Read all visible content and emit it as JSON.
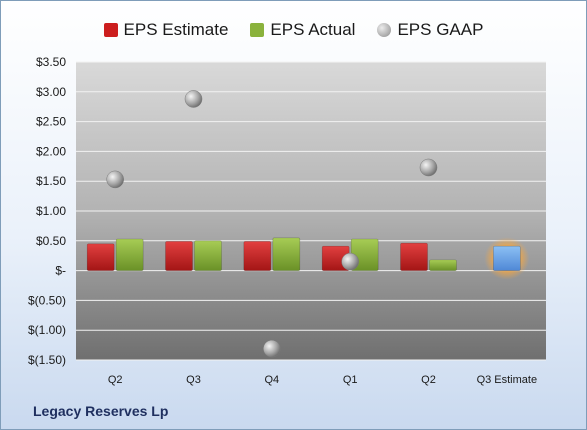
{
  "chart_data": {
    "type": "bar",
    "title": "",
    "categories": [
      "Q2",
      "Q3",
      "Q4",
      "Q1",
      "Q2",
      "Q3 Estimate"
    ],
    "series": [
      {
        "name": "EPS Estimate",
        "color": "#cc1e1e",
        "values": [
          0.45,
          0.49,
          0.49,
          0.41,
          0.46,
          null
        ]
      },
      {
        "name": "EPS Actual",
        "color": "#8ab23c",
        "values": [
          0.53,
          0.5,
          0.55,
          0.53,
          0.18,
          null
        ]
      },
      {
        "name": "EPS GAAP",
        "color": "#9a9a9a",
        "marker": "circle",
        "values": [
          1.53,
          2.88,
          -1.31,
          0.15,
          1.73,
          null
        ]
      }
    ],
    "estimate_bar": {
      "category": "Q3 Estimate",
      "value": 0.41,
      "color": "#6fa8e8",
      "glow": "#f5a742"
    },
    "yticks": [
      3.5,
      3.0,
      2.5,
      2.0,
      1.5,
      1.0,
      0.5,
      0,
      -0.5,
      -1.0,
      -1.5
    ],
    "ytick_labels": [
      "$3.50",
      "$3.00",
      "$2.50",
      "$2.00",
      "$1.50",
      "$1.00",
      "$0.50",
      "$-",
      "$(0.50)",
      "$(1.00)",
      "$(1.50)"
    ],
    "ylim": [
      -1.5,
      3.5
    ],
    "grid": true,
    "legend_position": "top"
  },
  "footer": {
    "title": "Legacy Reserves Lp"
  }
}
